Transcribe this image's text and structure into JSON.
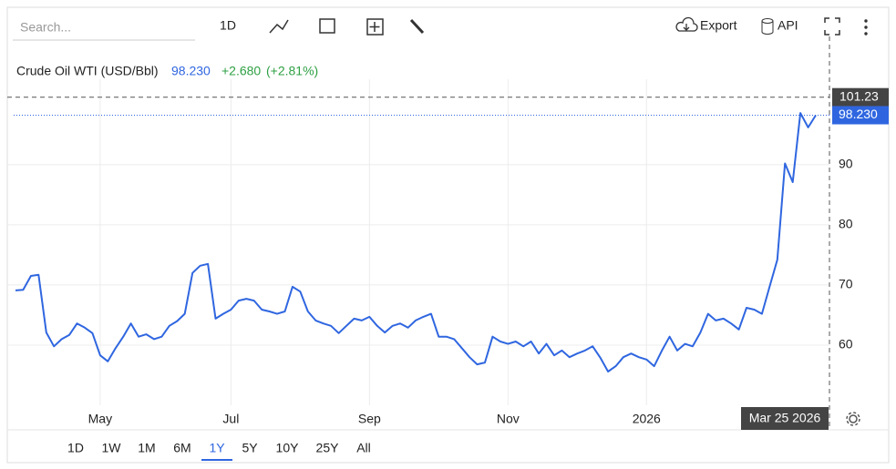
{
  "toolbar": {
    "search_placeholder": "Search...",
    "interval": "1D",
    "export": "Export",
    "api": "API"
  },
  "ranges": {
    "buttons": [
      "1D",
      "1W",
      "1M",
      "6M",
      "1Y",
      "5Y",
      "10Y",
      "25Y",
      "All"
    ],
    "active": "1Y"
  },
  "chart_data": {
    "type": "line",
    "title": "Crude Oil WTI (USD/Bbl)",
    "last": {
      "value": 98.23,
      "label": "98.230"
    },
    "change": "+2.680",
    "change_pct": "(+2.81%)",
    "color": "#2f66e0",
    "change_color": "#2ea043",
    "crosshair": {
      "value": 101.23,
      "label": "101.23"
    },
    "categories": [
      null,
      null,
      null,
      null,
      null,
      null,
      null,
      null,
      null,
      null,
      null,
      "May",
      null,
      null,
      null,
      null,
      null,
      null,
      null,
      null,
      null,
      null,
      null,
      null,
      null,
      null,
      null,
      null,
      "Jul",
      null,
      null,
      null,
      null,
      null,
      null,
      null,
      null,
      null,
      null,
      null,
      null,
      null,
      null,
      null,
      null,
      null,
      "Sep",
      null,
      null,
      null,
      null,
      null,
      null,
      null,
      null,
      null,
      null,
      null,
      null,
      null,
      null,
      null,
      null,
      null,
      "Nov",
      null,
      null,
      null,
      null,
      null,
      null,
      null,
      null,
      null,
      null,
      null,
      null,
      null,
      null,
      null,
      null,
      null,
      "2026",
      null,
      null,
      null,
      null,
      null,
      null,
      null,
      null,
      null,
      null,
      null,
      null,
      null,
      null,
      null,
      null,
      null,
      null,
      null,
      null,
      null,
      "Mar 25 2026"
    ],
    "values": [
      69.1,
      69.2,
      71.5,
      71.7,
      62.1,
      59.8,
      61,
      61.7,
      63.6,
      62.9,
      62,
      58.3,
      57.3,
      59.5,
      61.4,
      63.6,
      61.4,
      61.8,
      61,
      61.4,
      63.2,
      64,
      65.2,
      72,
      73.2,
      73.5,
      64.4,
      65.2,
      65.9,
      67.4,
      67.7,
      67.4,
      65.9,
      65.6,
      65.2,
      65.6,
      69.7,
      68.9,
      65.6,
      64.1,
      63.6,
      63.2,
      62,
      63.2,
      64.4,
      64.1,
      64.7,
      63.2,
      62.1,
      63.2,
      63.6,
      62.9,
      64.1,
      64.7,
      65.2,
      61.4,
      61.4,
      61,
      59.5,
      58,
      56.8,
      57.1,
      61.4,
      60.6,
      60.2,
      60.6,
      59.8,
      60.6,
      58.6,
      60.2,
      58.3,
      59.1,
      58,
      58.6,
      59.1,
      59.8,
      57.9,
      55.6,
      56.5,
      58,
      58.6,
      58,
      57.6,
      56.5,
      59.1,
      61.4,
      59.1,
      60.2,
      59.8,
      62.1,
      65.2,
      64.1,
      64.4,
      63.6,
      62.6,
      66.2,
      65.9,
      65.2,
      69.7,
      74.2,
      90.2,
      87.1,
      98.6,
      96.2,
      98.23
    ],
    "ylim": [
      50,
      102.7
    ],
    "yticks": [
      60,
      70,
      80,
      90
    ],
    "grid": true
  }
}
